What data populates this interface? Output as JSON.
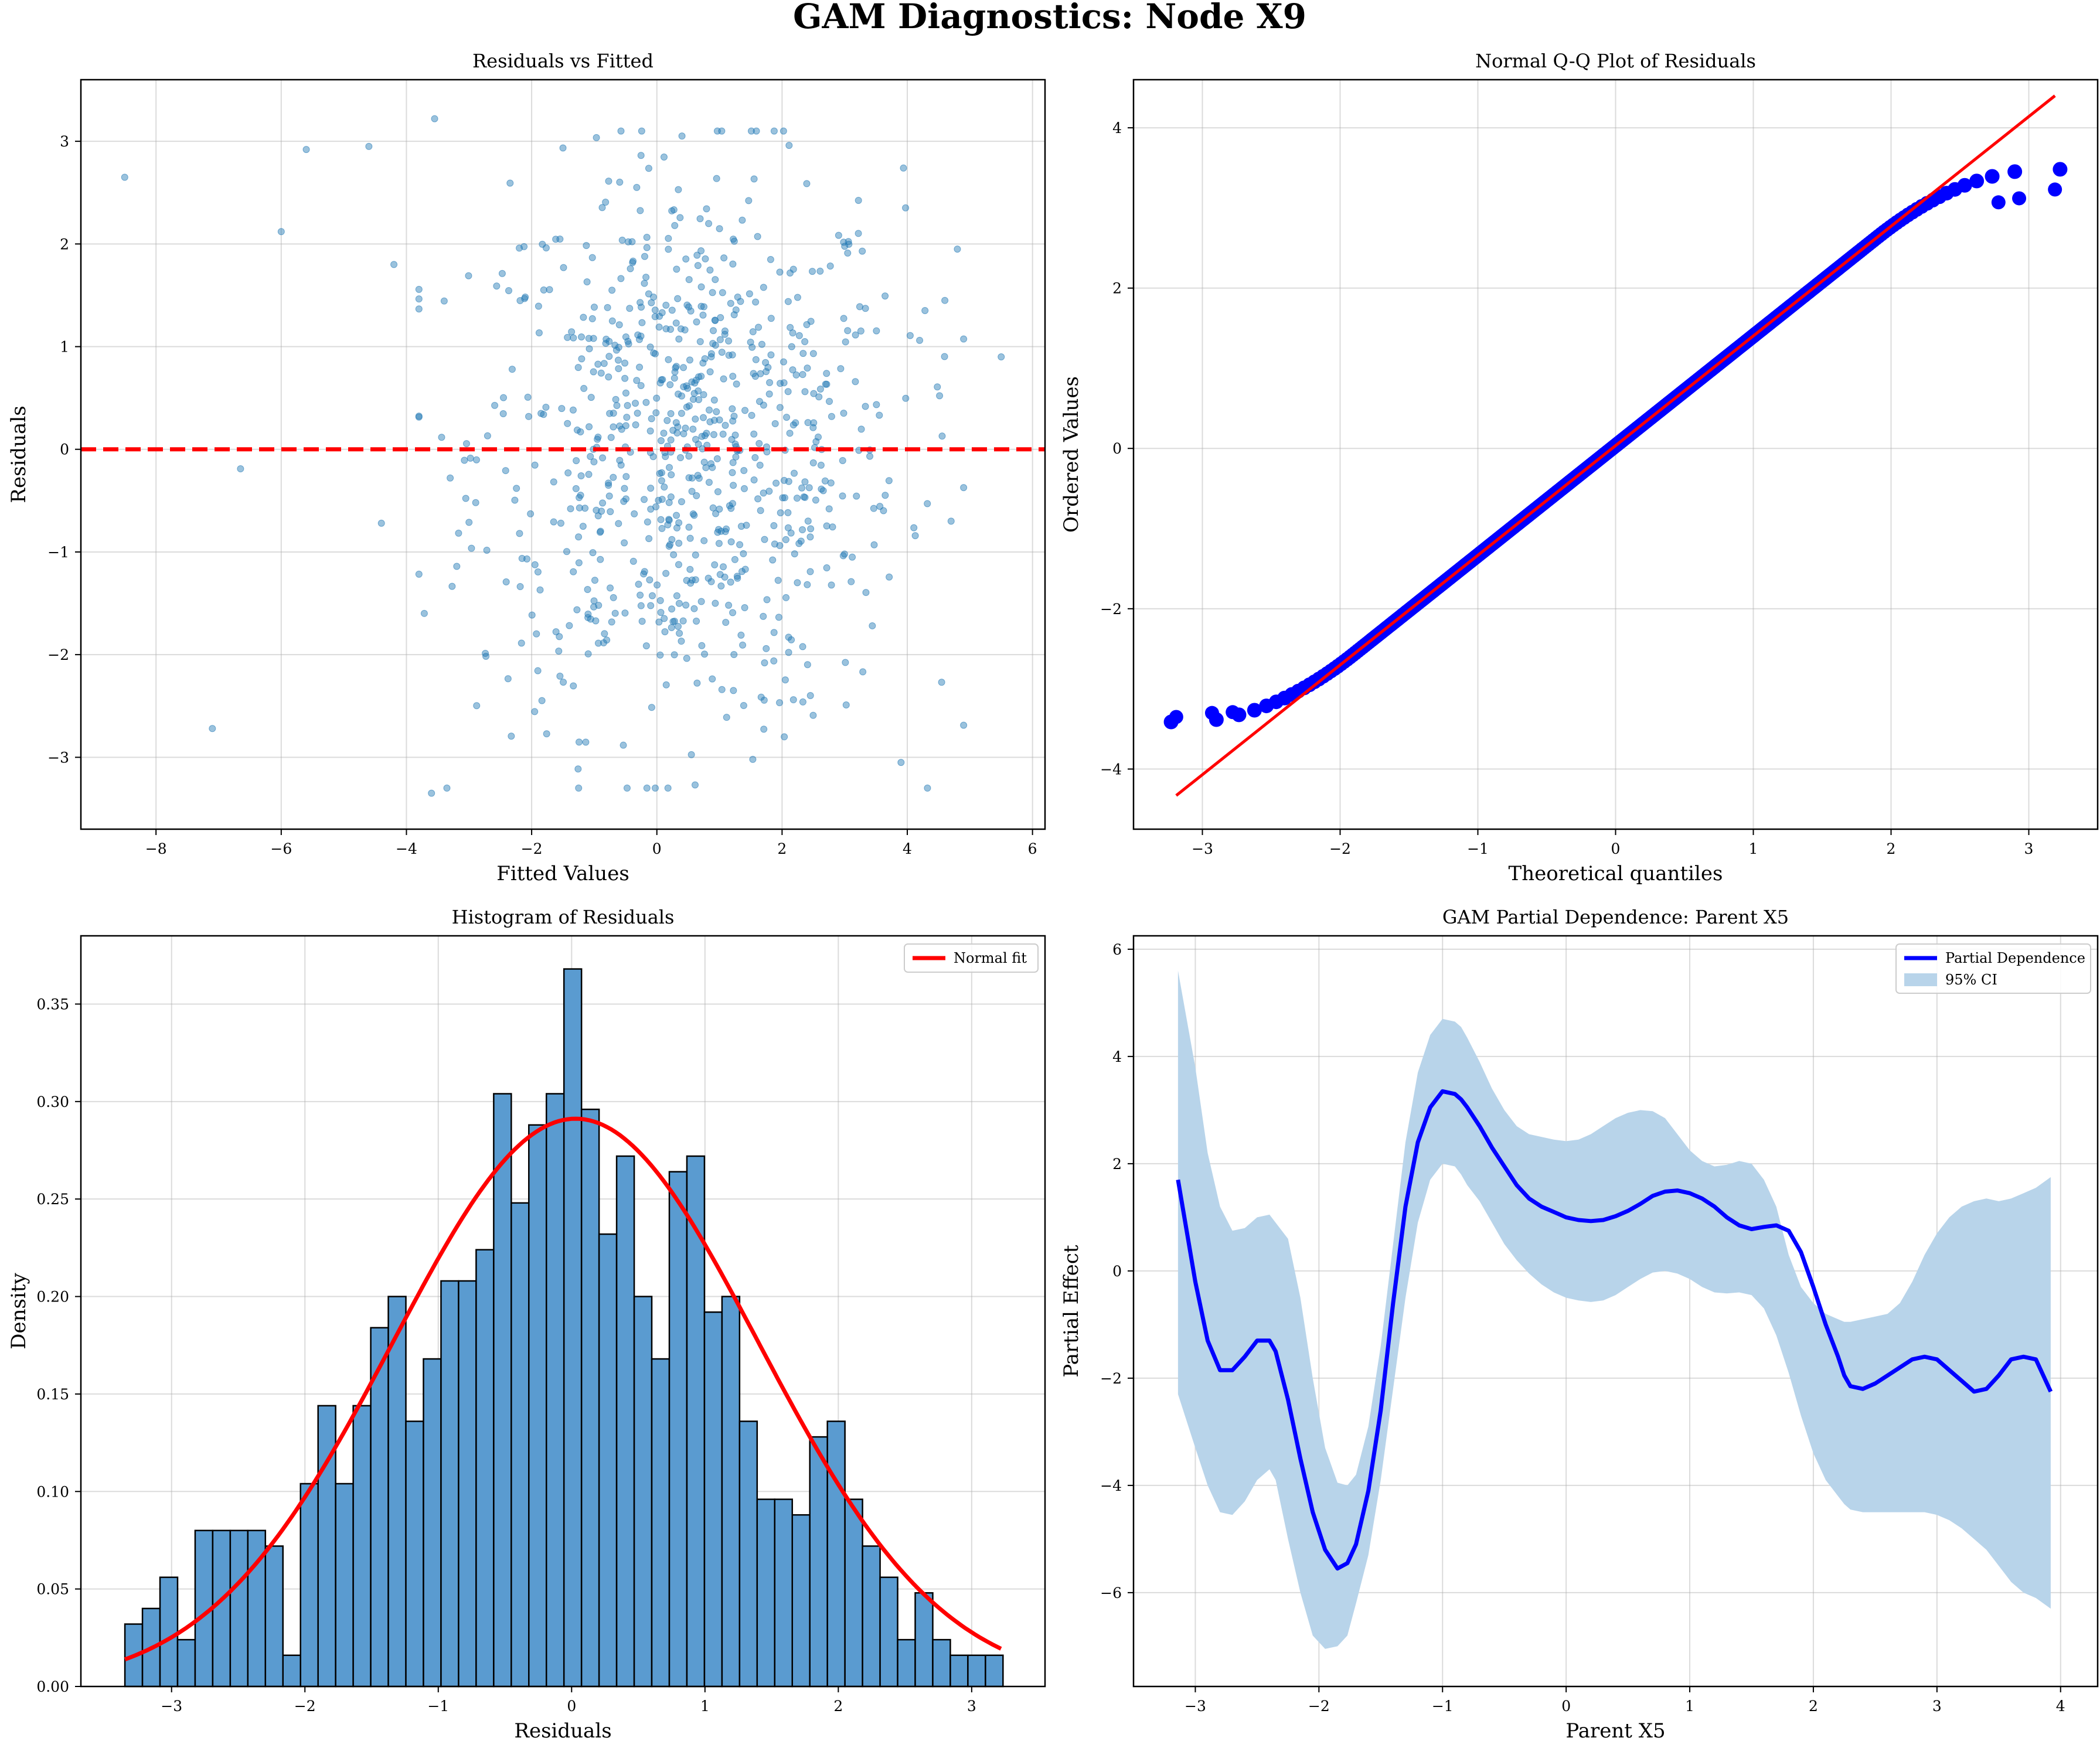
{
  "figure": {
    "title": "GAM Diagnostics: Node X9"
  },
  "colors": {
    "scatter": "#1f77b4",
    "reference": "#ff0000",
    "qq_points": "#0000ff",
    "hist_bar": "#5a9bd0",
    "ci_band": "#b8d4ea",
    "pd_line": "#0000ff"
  },
  "chart_data": [
    {
      "type": "scatter",
      "title": "Residuals vs Fitted",
      "xlabel": "Fitted Values",
      "ylabel": "Residuals",
      "xlim": [
        -9.2,
        6.2
      ],
      "ylim": [
        -3.7,
        3.6
      ],
      "xticks": [
        -8,
        -6,
        -4,
        -2,
        0,
        2,
        4,
        6
      ],
      "yticks": [
        -3,
        -2,
        -1,
        0,
        1,
        2,
        3
      ],
      "xtick_labels": [
        "−8",
        "−6",
        "−4",
        "−2",
        "0",
        "2",
        "4",
        "6"
      ],
      "ytick_labels": [
        "−3",
        "−2",
        "−1",
        "0",
        "1",
        "2",
        "3"
      ],
      "grid": true,
      "reference_line": {
        "y": 0,
        "style": "dashed"
      },
      "sample": {
        "n": 800,
        "x_mean": 0.5,
        "x_sd": 1.7,
        "y_sd": 1.35
      },
      "outliers": [
        {
          "x": -8.5,
          "y": 2.65
        },
        {
          "x": -7.1,
          "y": -2.72
        },
        {
          "x": -6.65,
          "y": -0.19
        },
        {
          "x": -6.0,
          "y": 2.12
        },
        {
          "x": -5.6,
          "y": 2.92
        },
        {
          "x": -4.6,
          "y": 2.95
        },
        {
          "x": -4.4,
          "y": -0.72
        },
        {
          "x": -4.2,
          "y": 1.8
        },
        {
          "x": -3.6,
          "y": -3.35
        },
        {
          "x": -3.55,
          "y": 3.22
        },
        {
          "x": 4.8,
          "y": 1.95
        },
        {
          "x": 5.5,
          "y": 0.9
        },
        {
          "x": 4.6,
          "y": 1.45
        },
        {
          "x": 4.7,
          "y": -0.7
        },
        {
          "x": 3.9,
          "y": -3.05
        }
      ]
    },
    {
      "type": "scatter",
      "title": "Normal Q-Q Plot of Residuals",
      "xlabel": "Theoretical quantiles",
      "ylabel": "Ordered Values",
      "xlim": [
        -3.5,
        3.5
      ],
      "ylim": [
        -4.75,
        4.6
      ],
      "xticks": [
        -3,
        -2,
        -1,
        0,
        1,
        2,
        3
      ],
      "yticks": [
        -4,
        -2,
        0,
        2,
        4
      ],
      "xtick_labels": [
        "−3",
        "−2",
        "−1",
        "0",
        "1",
        "2",
        "3"
      ],
      "ytick_labels": [
        "−4",
        "−2",
        "0",
        "2",
        "4"
      ],
      "grid": true,
      "n_points": 800,
      "reference_line": {
        "x": [
          -3.19,
          3.19
        ],
        "y": [
          -4.33,
          4.4
        ]
      },
      "tail_points": [
        {
          "x": -3.19,
          "y": -3.35
        },
        {
          "x": -2.93,
          "y": -3.3
        },
        {
          "x": -2.78,
          "y": -3.29
        },
        {
          "x": 2.78,
          "y": 3.07
        },
        {
          "x": 2.93,
          "y": 3.12
        },
        {
          "x": 3.19,
          "y": 3.23
        }
      ]
    },
    {
      "type": "bar",
      "title": "Histogram of Residuals",
      "xlabel": "Residuals",
      "ylabel": "Density",
      "xlim": [
        -3.68,
        3.55
      ],
      "ylim": [
        0,
        0.385
      ],
      "xticks": [
        -3,
        -2,
        -1,
        0,
        1,
        2,
        3
      ],
      "yticks": [
        0.0,
        0.05,
        0.1,
        0.15,
        0.2,
        0.25,
        0.3,
        0.35
      ],
      "xtick_labels": [
        "−3",
        "−2",
        "−1",
        "0",
        "1",
        "2",
        "3"
      ],
      "ytick_labels": [
        "0.00",
        "0.05",
        "0.10",
        "0.15",
        "0.20",
        "0.25",
        "0.30",
        "0.35"
      ],
      "grid": true,
      "bin_start": -3.35,
      "bin_width": 0.1317,
      "values": [
        0.032,
        0.04,
        0.056,
        0.024,
        0.08,
        0.08,
        0.08,
        0.08,
        0.072,
        0.016,
        0.104,
        0.144,
        0.104,
        0.144,
        0.184,
        0.2,
        0.136,
        0.168,
        0.208,
        0.208,
        0.224,
        0.304,
        0.248,
        0.288,
        0.304,
        0.368,
        0.296,
        0.232,
        0.272,
        0.2,
        0.168,
        0.264,
        0.272,
        0.192,
        0.2,
        0.136,
        0.096,
        0.096,
        0.088,
        0.128,
        0.136,
        0.096,
        0.072,
        0.056,
        0.024,
        0.048,
        0.024,
        0.016,
        0.016,
        0.016
      ],
      "fit_curve": {
        "name": "Normal fit",
        "mean": 0.03,
        "sd": 1.37,
        "x_range": [
          -3.35,
          3.22
        ]
      },
      "legend": {
        "position": "top-right",
        "entries": [
          "Normal fit"
        ]
      }
    },
    {
      "type": "line",
      "title": "GAM Partial Dependence: Parent X5",
      "xlabel": "Parent X5",
      "ylabel": "Partial Effect",
      "xlim": [
        -3.5,
        4.3
      ],
      "ylim": [
        -7.75,
        6.25
      ],
      "xticks": [
        -3,
        -2,
        -1,
        0,
        1,
        2,
        3,
        4
      ],
      "yticks": [
        -6,
        -4,
        -2,
        0,
        2,
        4,
        6
      ],
      "xtick_labels": [
        "−3",
        "−2",
        "−1",
        "0",
        "1",
        "2",
        "3",
        "4"
      ],
      "ytick_labels": [
        "−6",
        "−4",
        "−2",
        "0",
        "2",
        "4",
        "6"
      ],
      "grid": true,
      "x": [
        -3.14,
        -3.0,
        -2.9,
        -2.8,
        -2.7,
        -2.6,
        -2.5,
        -2.4,
        -2.35,
        -2.25,
        -2.15,
        -2.05,
        -1.95,
        -1.85,
        -1.77,
        -1.7,
        -1.6,
        -1.5,
        -1.4,
        -1.3,
        -1.2,
        -1.1,
        -1.0,
        -0.9,
        -0.85,
        -0.8,
        -0.7,
        -0.6,
        -0.5,
        -0.4,
        -0.3,
        -0.2,
        -0.1,
        0.0,
        0.1,
        0.2,
        0.3,
        0.4,
        0.5,
        0.6,
        0.7,
        0.8,
        0.9,
        1.0,
        1.1,
        1.2,
        1.3,
        1.4,
        1.5,
        1.6,
        1.7,
        1.8,
        1.9,
        2.0,
        2.1,
        2.2,
        2.25,
        2.3,
        2.4,
        2.5,
        2.6,
        2.7,
        2.8,
        2.9,
        3.0,
        3.1,
        3.2,
        3.3,
        3.4,
        3.5,
        3.6,
        3.7,
        3.8,
        3.92
      ],
      "series": [
        {
          "name": "Partial Dependence",
          "values": [
            1.7,
            -0.2,
            -1.3,
            -1.85,
            -1.85,
            -1.6,
            -1.3,
            -1.3,
            -1.5,
            -2.4,
            -3.5,
            -4.5,
            -5.2,
            -5.55,
            -5.45,
            -5.1,
            -4.1,
            -2.6,
            -0.6,
            1.2,
            2.4,
            3.05,
            3.35,
            3.3,
            3.2,
            3.05,
            2.7,
            2.3,
            1.95,
            1.6,
            1.35,
            1.2,
            1.1,
            1.0,
            0.95,
            0.93,
            0.95,
            1.02,
            1.12,
            1.25,
            1.4,
            1.48,
            1.5,
            1.45,
            1.35,
            1.2,
            1.0,
            0.85,
            0.78,
            0.82,
            0.85,
            0.75,
            0.35,
            -0.3,
            -1.0,
            -1.6,
            -1.95,
            -2.15,
            -2.2,
            -2.1,
            -1.95,
            -1.8,
            -1.65,
            -1.6,
            -1.65,
            -1.85,
            -2.05,
            -2.25,
            -2.2,
            -1.95,
            -1.65,
            -1.6,
            -1.65,
            -2.25
          ]
        },
        {
          "name": "95% CI",
          "upper": [
            5.6,
            3.8,
            2.2,
            1.2,
            0.75,
            0.8,
            1.0,
            1.05,
            0.9,
            0.6,
            -0.5,
            -2.0,
            -3.3,
            -3.95,
            -4.0,
            -3.8,
            -2.9,
            -1.4,
            0.5,
            2.4,
            3.7,
            4.4,
            4.7,
            4.65,
            4.55,
            4.35,
            3.9,
            3.4,
            3.0,
            2.7,
            2.55,
            2.5,
            2.45,
            2.42,
            2.45,
            2.55,
            2.7,
            2.85,
            2.95,
            3.0,
            2.98,
            2.85,
            2.55,
            2.25,
            2.05,
            1.95,
            1.98,
            2.05,
            2.0,
            1.7,
            1.2,
            0.3,
            -0.3,
            -0.6,
            -0.8,
            -0.9,
            -0.95,
            -0.95,
            -0.9,
            -0.85,
            -0.8,
            -0.6,
            -0.2,
            0.3,
            0.7,
            1.0,
            1.2,
            1.3,
            1.35,
            1.3,
            1.35,
            1.45,
            1.55,
            1.75
          ],
          "lower": [
            -2.3,
            -3.3,
            -4.0,
            -4.5,
            -4.55,
            -4.3,
            -3.9,
            -3.7,
            -3.9,
            -5.0,
            -6.0,
            -6.8,
            -7.05,
            -7.0,
            -6.8,
            -6.2,
            -5.3,
            -3.9,
            -2.2,
            -0.5,
            0.9,
            1.7,
            2.0,
            1.95,
            1.8,
            1.6,
            1.3,
            0.9,
            0.5,
            0.2,
            -0.05,
            -0.25,
            -0.4,
            -0.5,
            -0.55,
            -0.58,
            -0.55,
            -0.45,
            -0.3,
            -0.15,
            -0.03,
            0.0,
            -0.05,
            -0.15,
            -0.3,
            -0.4,
            -0.42,
            -0.4,
            -0.45,
            -0.7,
            -1.2,
            -1.9,
            -2.7,
            -3.4,
            -3.9,
            -4.2,
            -4.35,
            -4.45,
            -4.5,
            -4.5,
            -4.5,
            -4.5,
            -4.5,
            -4.5,
            -4.55,
            -4.65,
            -4.8,
            -5.0,
            -5.2,
            -5.5,
            -5.8,
            -6.0,
            -6.1,
            -6.3
          ]
        }
      ],
      "legend": {
        "position": "top-right",
        "entries": [
          "Partial Dependence",
          "95% CI"
        ]
      }
    }
  ]
}
